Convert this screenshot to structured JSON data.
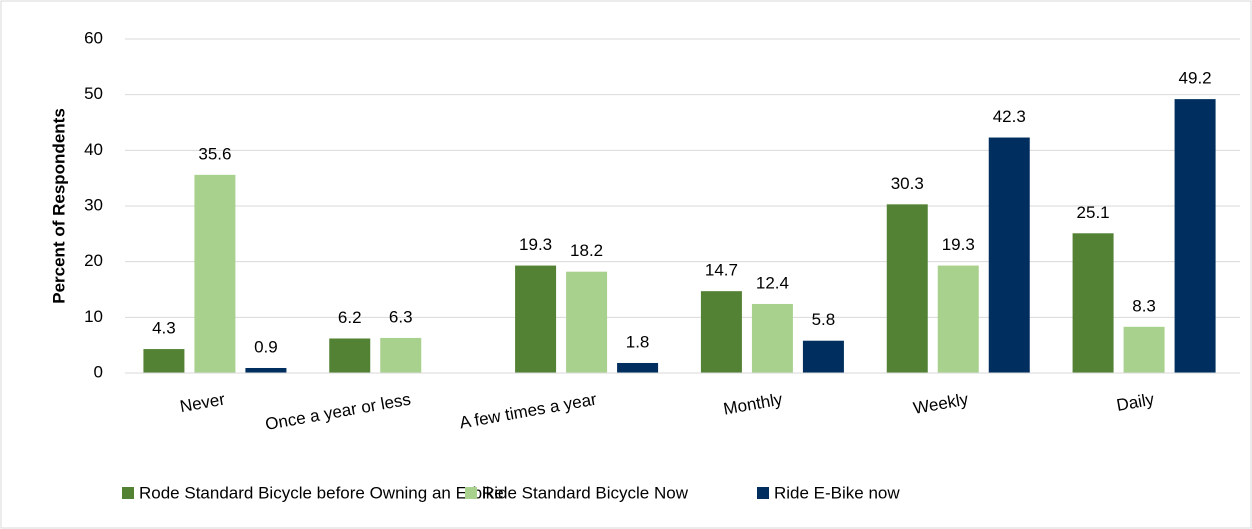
{
  "chart_data": {
    "type": "bar",
    "y_label": "Percent of Respondents",
    "categories": [
      "Never",
      "Once a year or less",
      "A few times a year",
      "Monthly",
      "Weekly",
      "Daily"
    ],
    "series": [
      {
        "name": "Rode Standard Bicycle before Owning an E-bike",
        "color": "#548235",
        "values": [
          4.3,
          6.2,
          19.3,
          14.7,
          30.3,
          25.1
        ]
      },
      {
        "name": "Ride Standard Bicycle Now",
        "color": "#a9d18e",
        "values": [
          35.6,
          6.3,
          18.2,
          12.4,
          19.3,
          8.3
        ]
      },
      {
        "name": "Ride E-Bike now",
        "color": "#002f5f",
        "values": [
          0.9,
          null,
          1.8,
          5.8,
          42.3,
          49.2
        ]
      }
    ],
    "ylim": [
      0,
      60
    ],
    "yticks": [
      0,
      10,
      20,
      30,
      40,
      50,
      60
    ],
    "grid": true,
    "legend": "bottom"
  }
}
